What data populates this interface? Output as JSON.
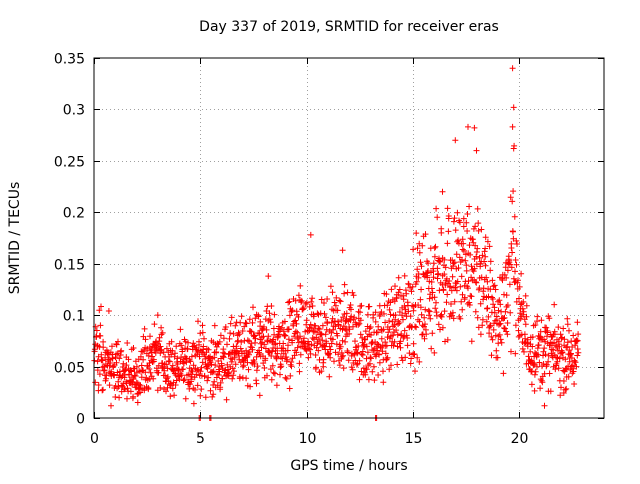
{
  "chart_data": {
    "type": "scatter",
    "title": "Day 337 of 2019, SRMTID for receiver eras",
    "xlabel": "GPS time / hours",
    "ylabel": "SRMTID / TECUs",
    "xlim": [
      0,
      24
    ],
    "ylim": [
      0,
      0.35
    ],
    "x_ticks": [
      0,
      5,
      10,
      15,
      20
    ],
    "y_ticks": [
      0,
      0.05,
      0.1,
      0.15,
      0.2,
      0.25,
      0.3,
      0.35
    ],
    "x_tick_labels": [
      "0",
      "5",
      "10",
      "15",
      "20"
    ],
    "y_tick_labels": [
      "0",
      "0.05",
      "0.1",
      "0.15",
      "0.2",
      "0.25",
      "0.3",
      "0.35"
    ],
    "grid": true,
    "marker": "+",
    "series_color": "#ff0000",
    "x_range_of_data": [
      0,
      22.8
    ],
    "trend": [
      {
        "x": 0.0,
        "y": 0.065
      },
      {
        "x": 0.5,
        "y": 0.06
      },
      {
        "x": 1.0,
        "y": 0.05
      },
      {
        "x": 1.5,
        "y": 0.042
      },
      {
        "x": 2.0,
        "y": 0.038
      },
      {
        "x": 2.5,
        "y": 0.058
      },
      {
        "x": 3.0,
        "y": 0.06
      },
      {
        "x": 3.5,
        "y": 0.05
      },
      {
        "x": 4.0,
        "y": 0.048
      },
      {
        "x": 4.5,
        "y": 0.05
      },
      {
        "x": 5.0,
        "y": 0.06
      },
      {
        "x": 5.5,
        "y": 0.05
      },
      {
        "x": 6.0,
        "y": 0.055
      },
      {
        "x": 6.5,
        "y": 0.06
      },
      {
        "x": 7.0,
        "y": 0.065
      },
      {
        "x": 7.5,
        "y": 0.07
      },
      {
        "x": 8.0,
        "y": 0.075
      },
      {
        "x": 8.5,
        "y": 0.07
      },
      {
        "x": 9.0,
        "y": 0.07
      },
      {
        "x": 9.5,
        "y": 0.085
      },
      {
        "x": 10.0,
        "y": 0.08
      },
      {
        "x": 10.5,
        "y": 0.07
      },
      {
        "x": 11.0,
        "y": 0.075
      },
      {
        "x": 11.5,
        "y": 0.085
      },
      {
        "x": 12.0,
        "y": 0.085
      },
      {
        "x": 12.5,
        "y": 0.075
      },
      {
        "x": 13.0,
        "y": 0.07
      },
      {
        "x": 13.5,
        "y": 0.075
      },
      {
        "x": 14.0,
        "y": 0.09
      },
      {
        "x": 14.5,
        "y": 0.1
      },
      {
        "x": 15.0,
        "y": 0.11
      },
      {
        "x": 15.5,
        "y": 0.12
      },
      {
        "x": 16.0,
        "y": 0.125
      },
      {
        "x": 16.5,
        "y": 0.14
      },
      {
        "x": 17.0,
        "y": 0.15
      },
      {
        "x": 17.5,
        "y": 0.14
      },
      {
        "x": 18.0,
        "y": 0.155
      },
      {
        "x": 18.5,
        "y": 0.12
      },
      {
        "x": 19.0,
        "y": 0.09
      },
      {
        "x": 19.5,
        "y": 0.13
      },
      {
        "x": 19.8,
        "y": 0.175
      },
      {
        "x": 20.0,
        "y": 0.1
      },
      {
        "x": 20.5,
        "y": 0.07
      },
      {
        "x": 21.0,
        "y": 0.065
      },
      {
        "x": 21.5,
        "y": 0.065
      },
      {
        "x": 22.0,
        "y": 0.06
      },
      {
        "x": 22.5,
        "y": 0.06
      },
      {
        "x": 22.8,
        "y": 0.06
      }
    ],
    "notable_points": [
      {
        "x": 19.7,
        "y": 0.34
      },
      {
        "x": 19.75,
        "y": 0.302
      },
      {
        "x": 19.7,
        "y": 0.283
      },
      {
        "x": 17.6,
        "y": 0.283
      },
      {
        "x": 17.9,
        "y": 0.282
      },
      {
        "x": 17.0,
        "y": 0.27
      },
      {
        "x": 19.75,
        "y": 0.262
      },
      {
        "x": 18.0,
        "y": 0.26
      },
      {
        "x": 16.4,
        "y": 0.22
      },
      {
        "x": 10.2,
        "y": 0.178
      },
      {
        "x": 11.7,
        "y": 0.163
      },
      {
        "x": 8.2,
        "y": 0.138
      },
      {
        "x": 0.7,
        "y": 0.104
      },
      {
        "x": 3.0,
        "y": 0.1
      },
      {
        "x": 0.8,
        "y": 0.012
      },
      {
        "x": 21.2,
        "y": 0.012
      },
      {
        "x": 7.8,
        "y": 0.022
      }
    ],
    "zero_values_x": [
      4.95,
      5.0,
      5.45,
      5.5,
      13.25,
      13.3
    ]
  }
}
